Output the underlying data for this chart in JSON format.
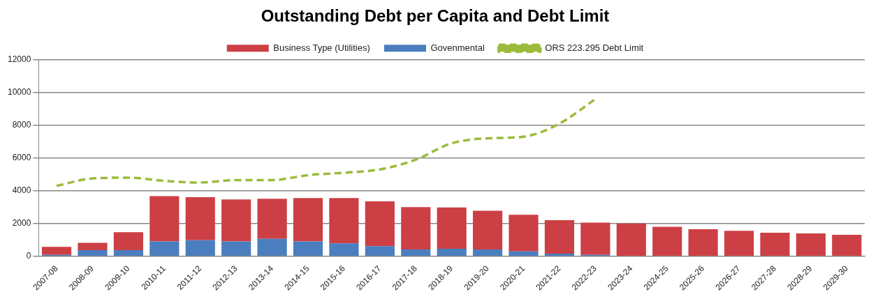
{
  "chart_data": {
    "type": "bar",
    "title": "Outstanding Debt per Capita and Debt Limit",
    "categories": [
      "2007-08",
      "2008-09",
      "2009-10",
      "2010-11",
      "2011-12",
      "2012-13",
      "2013-14",
      "2014-15",
      "2015-16",
      "2016-17",
      "2017-18",
      "2018-19",
      "2019-20",
      "2020-21",
      "2021-22",
      "2022-23",
      "2023-24",
      "2024-25",
      "2025-26",
      "2026-27",
      "2027-28",
      "2028-29",
      "2029-30"
    ],
    "stacked": true,
    "series": [
      {
        "name": "Govenmental",
        "color": "#4a7ebf",
        "values": [
          80,
          370,
          370,
          900,
          980,
          900,
          1060,
          900,
          780,
          610,
          410,
          450,
          410,
          290,
          160,
          80,
          30,
          0,
          0,
          0,
          0,
          0,
          0
        ]
      },
      {
        "name": "Business Type (Utilities)",
        "color": "#cc3f44",
        "values": [
          490,
          450,
          1100,
          2770,
          2620,
          2570,
          2450,
          2650,
          2770,
          2740,
          2590,
          2530,
          2370,
          2240,
          2040,
          1970,
          1970,
          1800,
          1650,
          1550,
          1430,
          1390,
          1310
        ]
      },
      {
        "name": "ORS 223.295 Debt Limit",
        "type": "line",
        "color": "#9bbb3b",
        "line_style": "dashed",
        "marker": "none",
        "values": [
          4300,
          4750,
          4800,
          4600,
          4500,
          4650,
          4650,
          4950,
          5100,
          5300,
          5900,
          6900,
          7200,
          7300,
          8100,
          9600,
          null,
          null,
          null,
          null,
          null,
          null,
          null
        ]
      }
    ],
    "ylim": [
      0,
      12000
    ],
    "yticks": [
      0,
      2000,
      4000,
      6000,
      8000,
      10000,
      12000
    ],
    "grid": "y",
    "legend": "top"
  }
}
